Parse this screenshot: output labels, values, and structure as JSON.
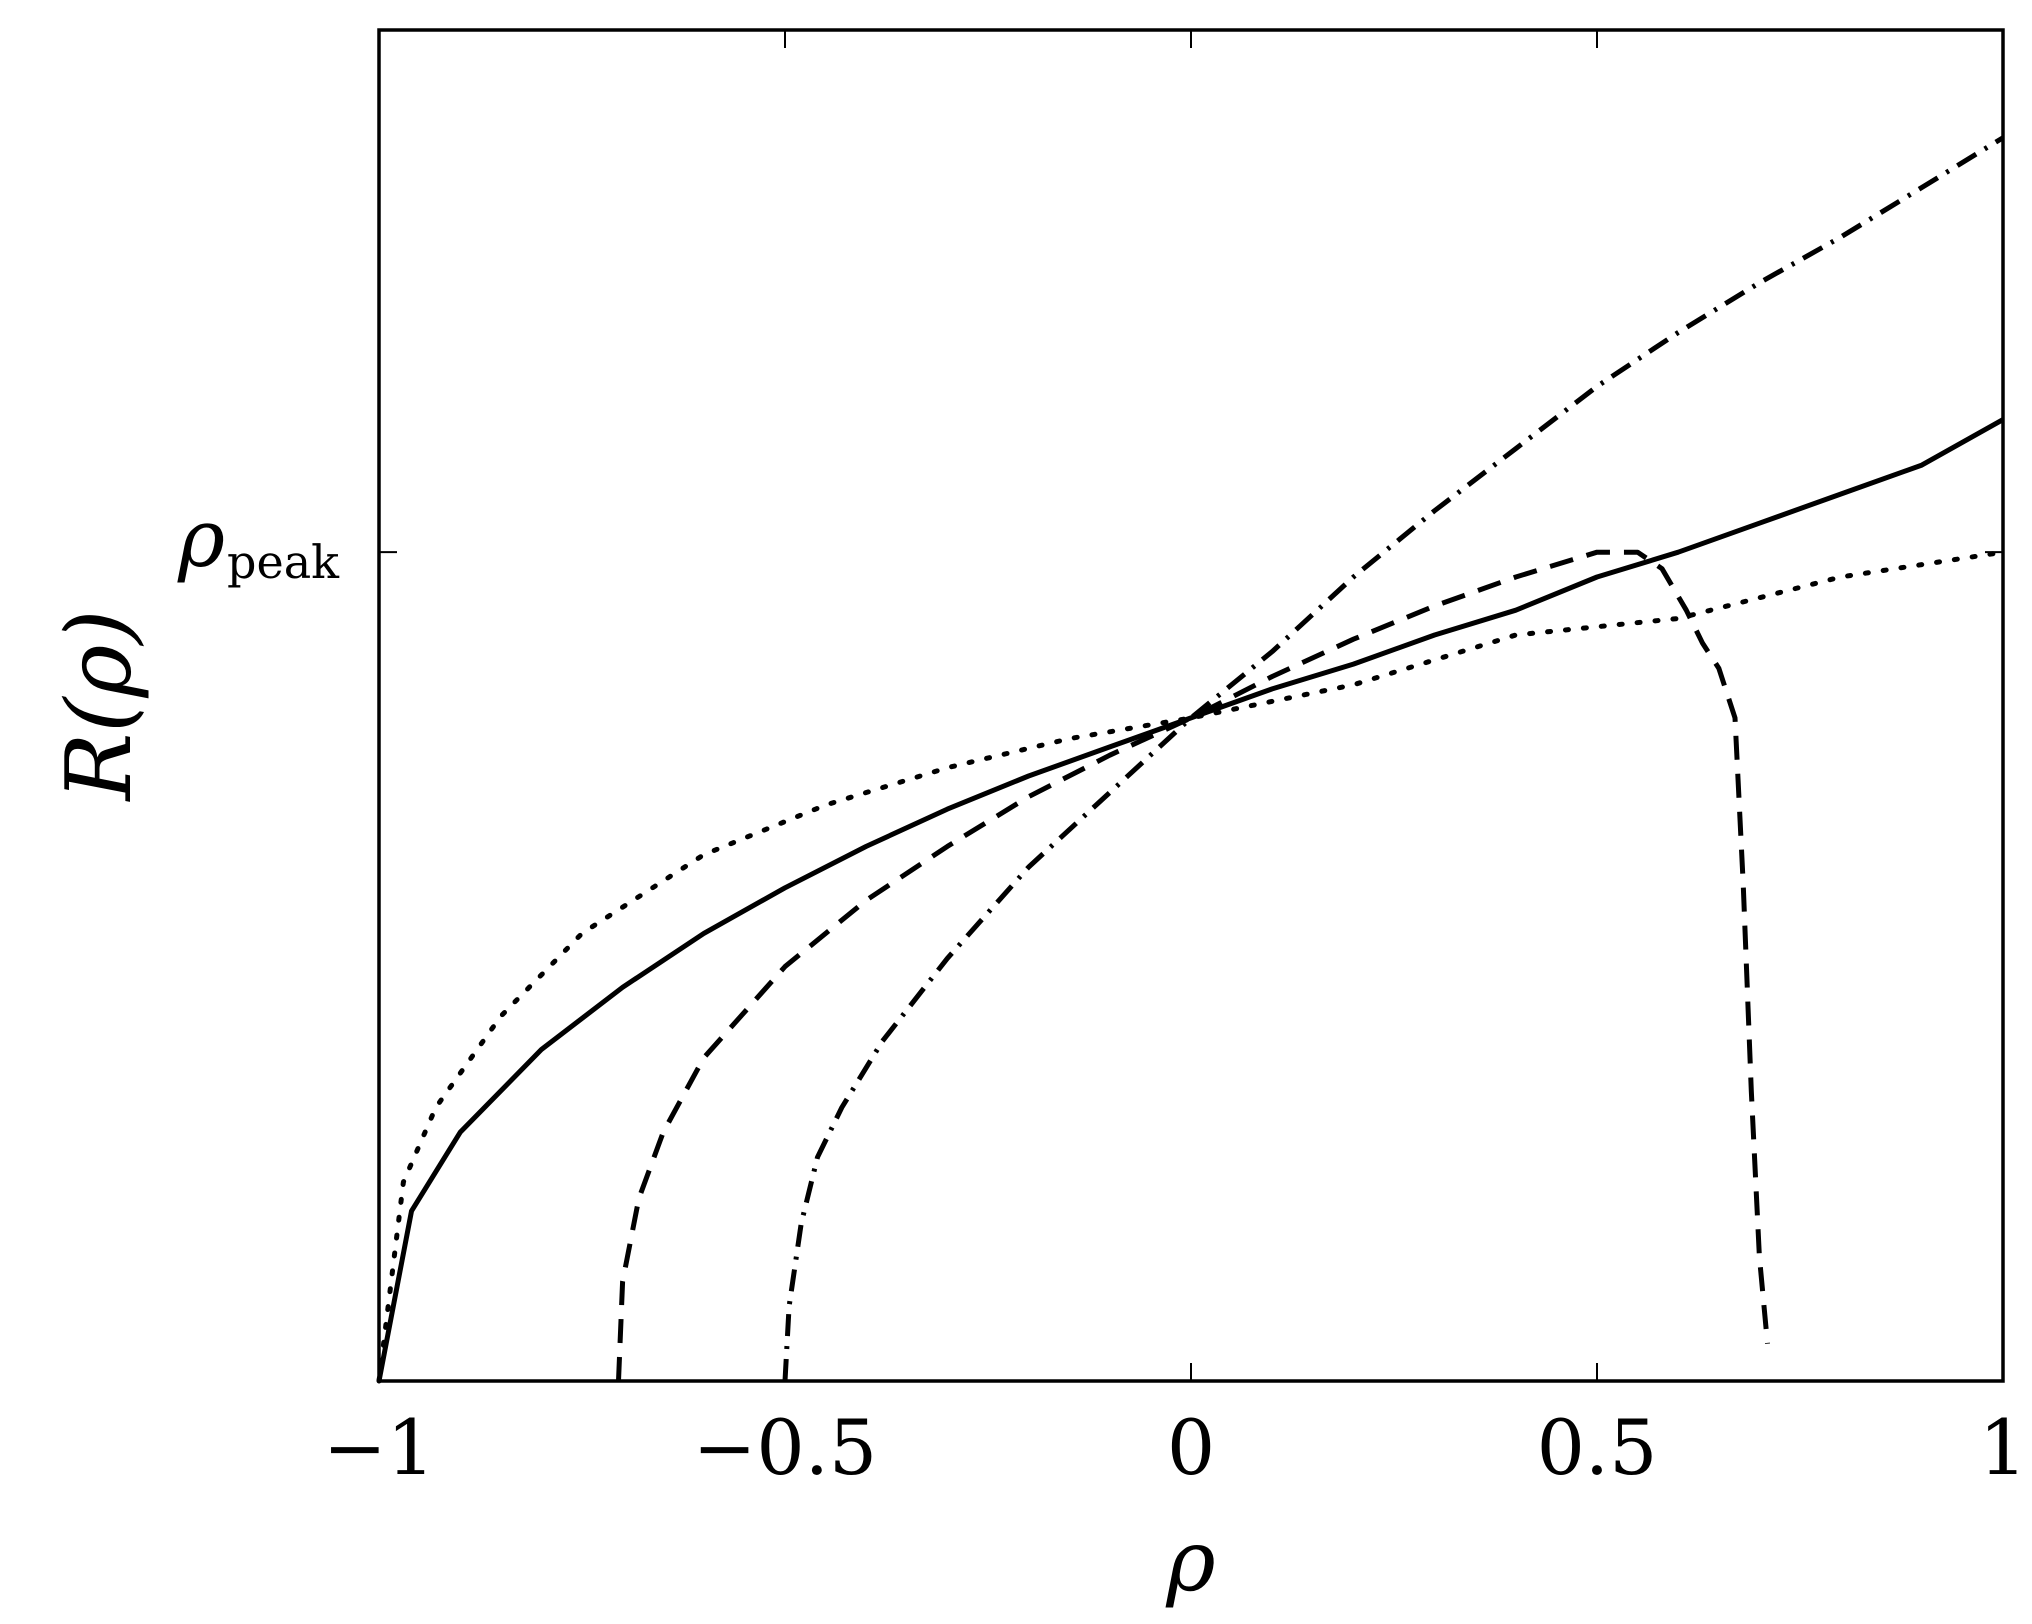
{
  "chart_data": {
    "type": "line",
    "xlabel": "ρ",
    "ylabel": "R(ρ)",
    "xlim": [
      -1,
      1
    ],
    "ylim": [
      0,
      1.63
    ],
    "grid": false,
    "legend": "none",
    "x_ticks": [
      {
        "value": -1,
        "label": "−1"
      },
      {
        "value": -0.5,
        "label": "−0.5"
      },
      {
        "value": 0,
        "label": "0"
      },
      {
        "value": 0.5,
        "label": "0.5"
      },
      {
        "value": 1,
        "label": "1"
      }
    ],
    "y_ticks": [
      {
        "value": 1.0,
        "label": "ρ",
        "subscript": "peak"
      }
    ],
    "series": [
      {
        "style": "solid",
        "x": [
          -1,
          -0.96,
          -0.9,
          -0.8,
          -0.7,
          -0.6,
          -0.5,
          -0.4,
          -0.3,
          -0.2,
          -0.1,
          0,
          0.1,
          0.2,
          0.3,
          0.4,
          0.5,
          0.6,
          0.7,
          0.8,
          0.9,
          1
        ],
        "y": [
          0,
          0.205,
          0.3,
          0.4,
          0.475,
          0.54,
          0.595,
          0.645,
          0.69,
          0.73,
          0.765,
          0.8,
          0.835,
          0.865,
          0.9,
          0.93,
          0.97,
          1.0,
          1.035,
          1.07,
          1.105,
          1.16
        ]
      },
      {
        "style": "dotted",
        "x": [
          -1,
          -0.97,
          -0.93,
          -0.85,
          -0.75,
          -0.6,
          -0.45,
          -0.3,
          -0.15,
          0,
          0.2,
          0.4,
          0.6,
          0.8,
          1
        ],
        "y": [
          0,
          0.24,
          0.33,
          0.44,
          0.54,
          0.635,
          0.695,
          0.74,
          0.775,
          0.8,
          0.84,
          0.9,
          0.92,
          0.97,
          1.0
        ]
      },
      {
        "style": "dashed",
        "x": [
          -0.705,
          -0.7,
          -0.68,
          -0.65,
          -0.6,
          -0.5,
          -0.4,
          -0.3,
          -0.2,
          -0.1,
          0,
          0.1,
          0.2,
          0.3,
          0.4,
          0.5,
          0.55,
          0.58,
          0.61,
          0.63,
          0.65,
          0.66,
          0.67,
          0.68,
          0.69,
          0.7,
          0.71
        ],
        "y": [
          0,
          0.12,
          0.22,
          0.3,
          0.39,
          0.5,
          0.58,
          0.645,
          0.705,
          0.755,
          0.8,
          0.85,
          0.895,
          0.935,
          0.97,
          1.0,
          1.0,
          0.98,
          0.93,
          0.89,
          0.86,
          0.83,
          0.8,
          0.6,
          0.35,
          0.15,
          0.045
        ]
      },
      {
        "style": "dashdot",
        "x": [
          -0.5,
          -0.495,
          -0.48,
          -0.46,
          -0.43,
          -0.38,
          -0.3,
          -0.2,
          -0.1,
          0,
          0.1,
          0.2,
          0.3,
          0.4,
          0.5,
          0.6,
          0.7,
          0.8,
          0.9,
          1
        ],
        "y": [
          0,
          0.09,
          0.19,
          0.27,
          0.33,
          0.41,
          0.51,
          0.62,
          0.71,
          0.8,
          0.88,
          0.97,
          1.05,
          1.125,
          1.2,
          1.265,
          1.325,
          1.38,
          1.44,
          1.5
        ]
      }
    ]
  }
}
